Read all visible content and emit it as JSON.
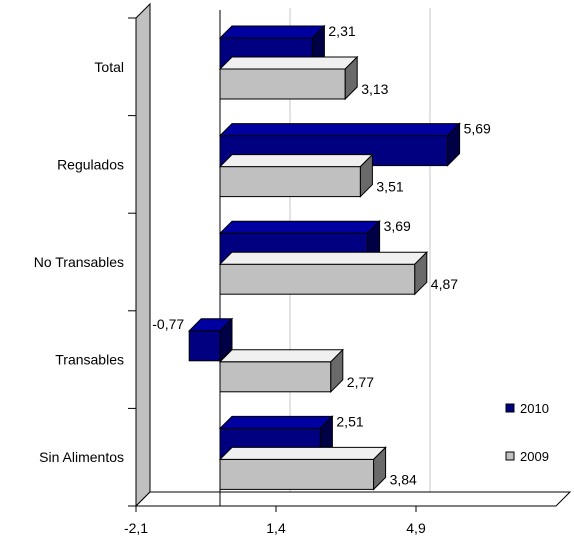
{
  "chart_data": {
    "type": "bar",
    "orientation": "horizontal",
    "three_d": true,
    "title": "",
    "xlabel": "",
    "ylabel": "",
    "categories": [
      "Total",
      "Regulados",
      "No Transables",
      "Transables",
      "Sin Alimentos"
    ],
    "series": [
      {
        "name": "2010",
        "color": "#000080",
        "values": [
          2.31,
          5.69,
          3.69,
          -0.77,
          2.51
        ],
        "labels": [
          "2,31",
          "5,69",
          "3,69",
          "-0,77",
          "2,51"
        ]
      },
      {
        "name": "2009",
        "color": "#c0c0c0",
        "values": [
          3.13,
          3.51,
          4.87,
          2.77,
          3.84
        ],
        "labels": [
          "3,13",
          "3,51",
          "4,87",
          "2,77",
          "3,84"
        ]
      }
    ],
    "xlim": [
      -2.1,
      8.4
    ],
    "xticks": [
      -2.1,
      1.4,
      4.9
    ],
    "xtick_labels": [
      "-2,1",
      "1,4",
      "4,9"
    ],
    "grid": "vertical",
    "legend": "bottom-right"
  }
}
